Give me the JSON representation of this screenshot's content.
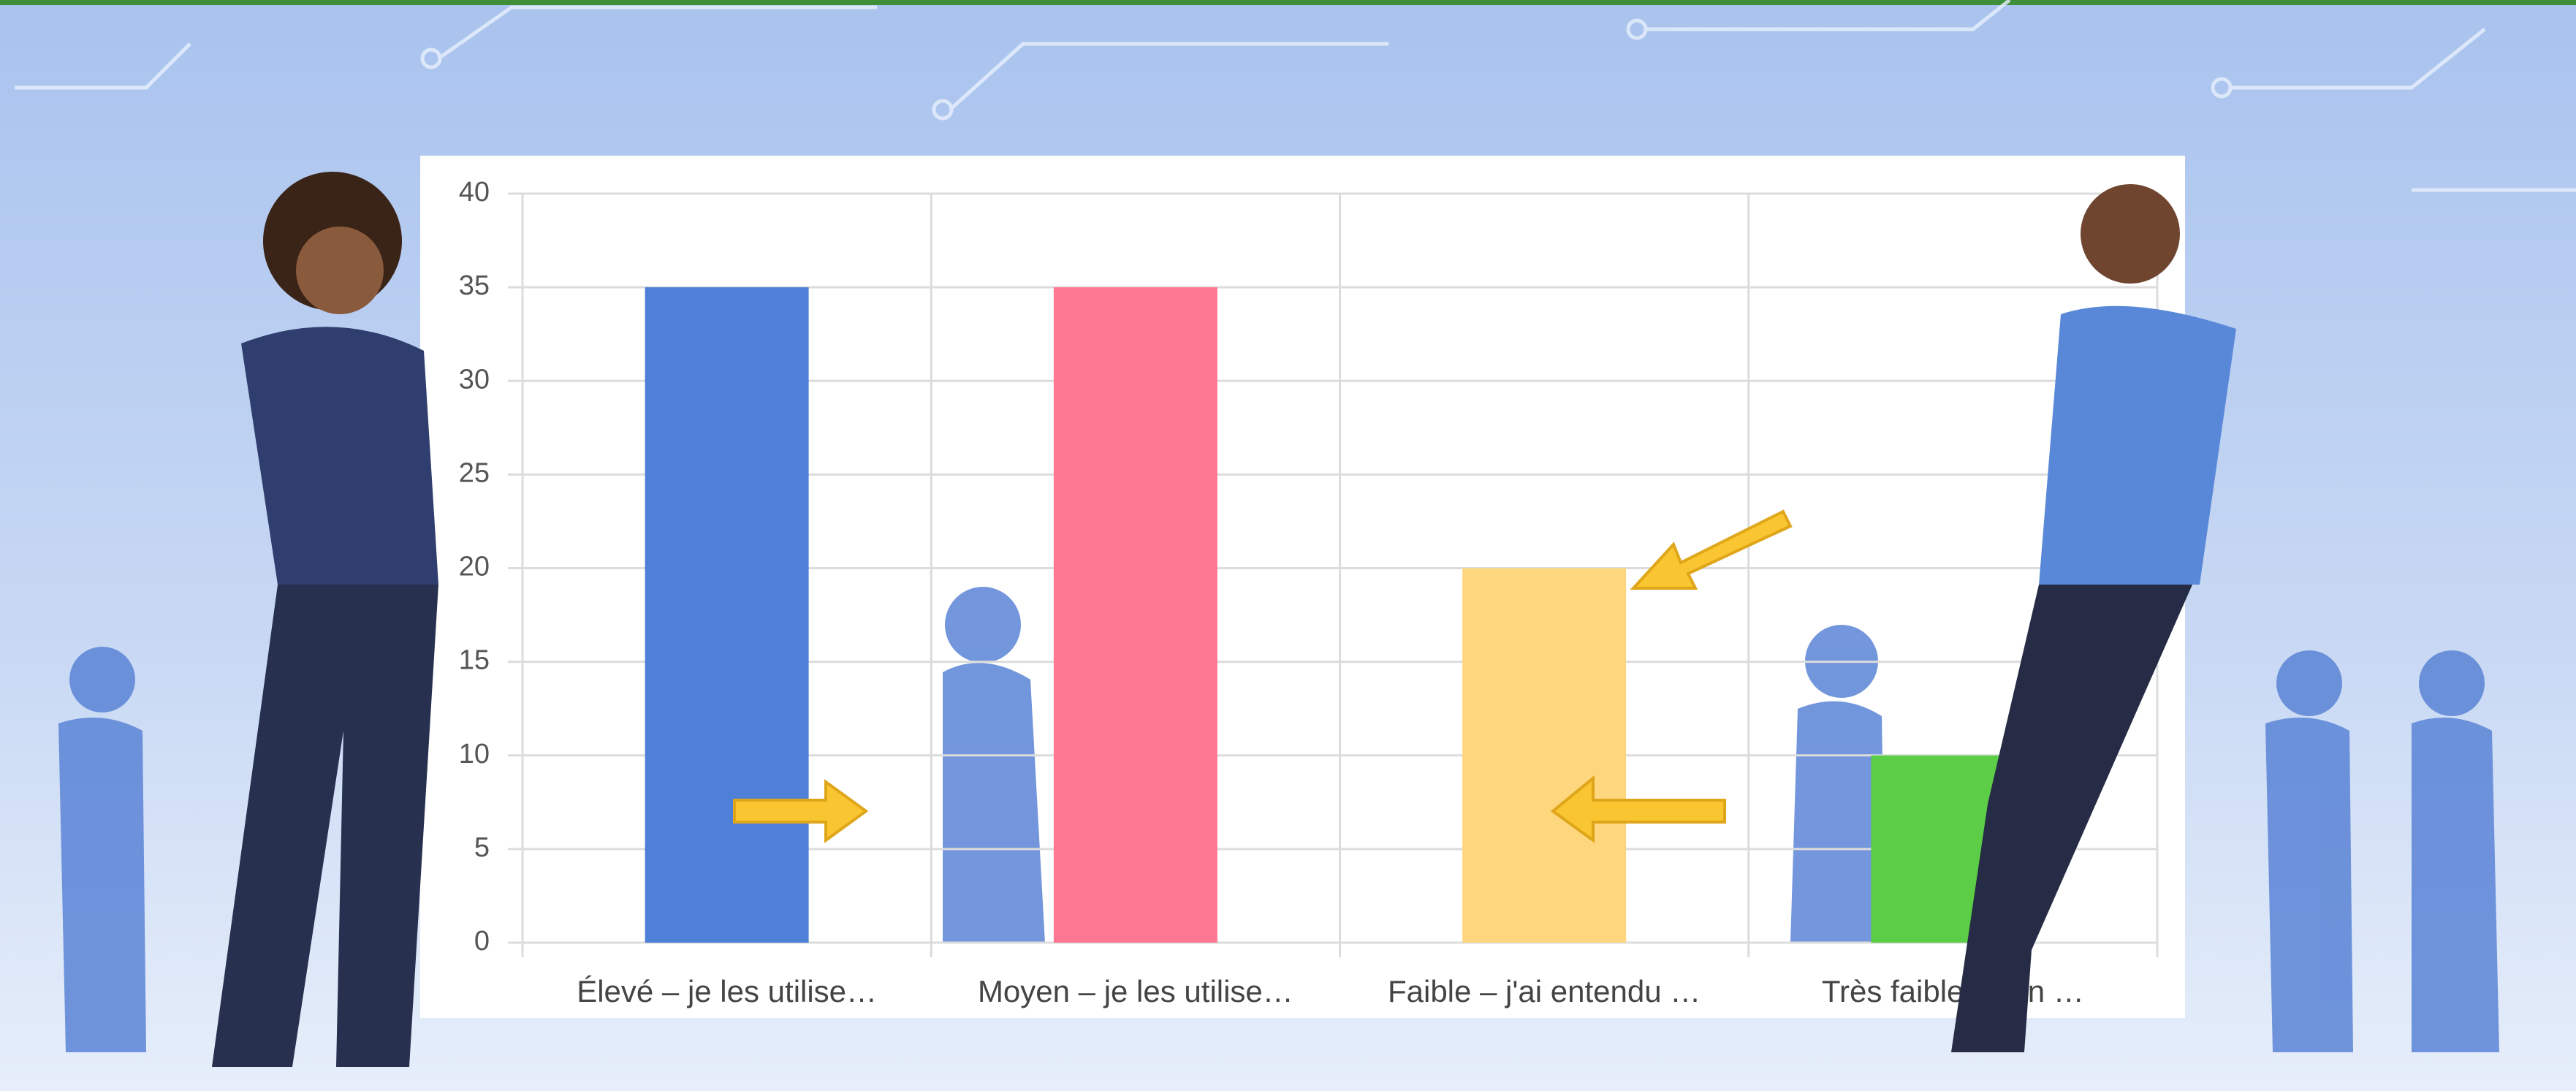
{
  "chart_data": {
    "type": "bar",
    "categories": [
      "Élevé – je les utilise…",
      "Moyen – je les utilise…",
      "Faible – j'ai entendu …",
      "Très faible – j'en …"
    ],
    "values": [
      35,
      35,
      20,
      10
    ],
    "colors": [
      "#4f80d8",
      "#ff7893",
      "#fdd67e",
      "#5ccd47"
    ],
    "ylim": [
      0,
      40
    ],
    "yticks": [
      0,
      5,
      10,
      15,
      20,
      25,
      30,
      35,
      40
    ],
    "grid": true
  }
}
